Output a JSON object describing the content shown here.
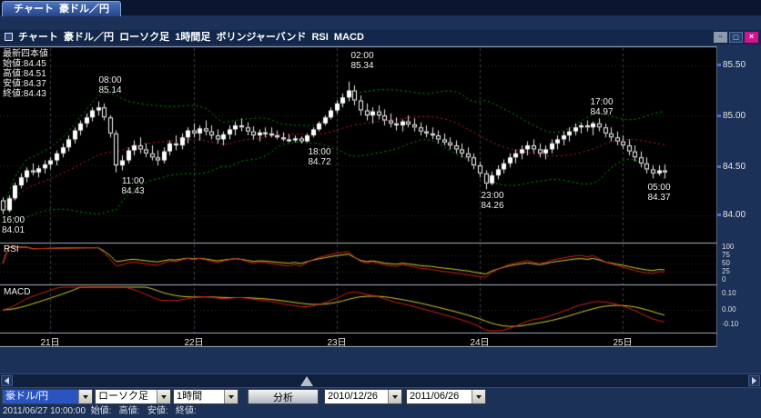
{
  "window": {
    "tab": "チャート  豪ドル／円",
    "title": "チャート  豪ドル／円  ローソク足  1時間足  ボリンジャーバンド  RSI  MACD",
    "buttons": {
      "minimize": "−",
      "maximize": "□",
      "close": "×"
    }
  },
  "legend": {
    "title": "最新四本値",
    "open": "始値:84.45",
    "high": "高値:84.51",
    "low": "安値:84.37",
    "close": "終値:84.43"
  },
  "price_axis": [
    "85.50",
    "85.00",
    "84.50",
    "84.00"
  ],
  "panels": {
    "rsi_label": "RSI",
    "macd_label": "MACD"
  },
  "rsi_axis": [
    "100",
    "75",
    "50",
    "25",
    "0"
  ],
  "macd_axis": [
    "0.10",
    "0.00",
    "-0.10"
  ],
  "date_axis": [
    "21日",
    "22日",
    "23日",
    "24日",
    "25日"
  ],
  "annotations": [
    {
      "time": "02:00",
      "price": "85.34"
    },
    {
      "time": "08:00",
      "price": "85.14"
    },
    {
      "time": "17:00",
      "price": "84.97"
    },
    {
      "time": "18:00",
      "price": "84.72"
    },
    {
      "time": "11:00",
      "price": "84.43"
    },
    {
      "time": "23:00",
      "price": "84.26"
    },
    {
      "time": "05:00",
      "price": "84.37"
    },
    {
      "time": "16:00",
      "price": "84.01"
    }
  ],
  "toolbar": {
    "pair": "豪ドル/円",
    "chart_type": "ローソク足",
    "interval": "1時間",
    "analyze": "分析",
    "date_from": "2010/12/26",
    "date_to": "2011/06/26"
  },
  "statusbar": "2011/06/27 10:00:00  始値:   高値:   安値:   終値:",
  "chart_data": {
    "type": "candlestick",
    "pair": "豪ドル/円",
    "interval": "1時間",
    "overlays": [
      "ボリンジャーバンド"
    ],
    "sub_indicators": [
      "RSI",
      "MACD"
    ],
    "price_ticks": [
      85.5,
      85.0,
      84.5,
      84.0
    ],
    "rsi_ticks": [
      100,
      75,
      50,
      25,
      0
    ],
    "macd_ticks": [
      0.1,
      0.0,
      -0.1
    ],
    "date_ticks": [
      "21日",
      "22日",
      "23日",
      "24日",
      "25日"
    ],
    "day_start_indices": [
      8,
      32,
      56,
      80,
      104
    ],
    "latest": {
      "open": 84.45,
      "high": 84.51,
      "low": 84.37,
      "close": 84.43
    },
    "extremes": [
      {
        "time": "02:00",
        "price": 85.34
      },
      {
        "time": "08:00",
        "price": 85.14
      },
      {
        "time": "17:00",
        "price": 84.97
      },
      {
        "time": "18:00",
        "price": 84.72
      },
      {
        "time": "11:00",
        "price": 84.43
      },
      {
        "time": "23:00",
        "price": 84.26
      },
      {
        "time": "05:00",
        "price": 84.37
      },
      {
        "time": "16:00",
        "price": 84.01
      }
    ],
    "colors": {
      "up_candle": "#ffffff",
      "down_candle": "#000000",
      "bollinger_band": "#00a000",
      "bollinger_mid": "#cc2222",
      "main_line": "#d61f1f",
      "signal_line": "#cfcf2e",
      "selection_blue": "#2a55c0",
      "close_button": "#d5128e"
    },
    "candles": [
      [
        84.15,
        84.18,
        84.01,
        84.05
      ],
      [
        84.05,
        84.2,
        84.03,
        84.17
      ],
      [
        84.17,
        84.33,
        84.15,
        84.3
      ],
      [
        84.3,
        84.42,
        84.27,
        84.38
      ],
      [
        84.38,
        84.48,
        84.33,
        84.45
      ],
      [
        84.45,
        84.52,
        84.4,
        84.43
      ],
      [
        84.43,
        84.5,
        84.38,
        84.47
      ],
      [
        84.47,
        84.55,
        84.42,
        84.51
      ],
      [
        84.51,
        84.58,
        84.46,
        84.55
      ],
      [
        84.55,
        84.65,
        84.5,
        84.62
      ],
      [
        84.62,
        84.72,
        84.58,
        84.68
      ],
      [
        84.68,
        84.8,
        84.64,
        84.76
      ],
      [
        84.76,
        84.88,
        84.72,
        84.85
      ],
      [
        84.85,
        84.95,
        84.8,
        84.92
      ],
      [
        84.92,
        85.02,
        84.88,
        84.98
      ],
      [
        84.98,
        85.08,
        84.94,
        85.05
      ],
      [
        85.05,
        85.14,
        85.0,
        85.08
      ],
      [
        85.08,
        85.12,
        84.95,
        84.98
      ],
      [
        84.98,
        85.0,
        84.78,
        84.82
      ],
      [
        84.82,
        84.85,
        84.43,
        84.5
      ],
      [
        84.5,
        84.6,
        84.45,
        84.55
      ],
      [
        84.55,
        84.68,
        84.52,
        84.65
      ],
      [
        84.65,
        84.75,
        84.6,
        84.7
      ],
      [
        84.7,
        84.78,
        84.62,
        84.66
      ],
      [
        84.66,
        84.72,
        84.58,
        84.62
      ],
      [
        84.62,
        84.7,
        84.55,
        84.58
      ],
      [
        84.58,
        84.65,
        84.5,
        84.55
      ],
      [
        84.55,
        84.68,
        84.52,
        84.64
      ],
      [
        84.64,
        84.75,
        84.6,
        84.72
      ],
      [
        84.72,
        84.8,
        84.65,
        84.7
      ],
      [
        84.7,
        84.82,
        84.66,
        84.78
      ],
      [
        84.78,
        84.88,
        84.72,
        84.85
      ],
      [
        84.85,
        84.92,
        84.78,
        84.82
      ],
      [
        84.82,
        84.9,
        84.75,
        84.87
      ],
      [
        84.87,
        84.95,
        84.8,
        84.84
      ],
      [
        84.84,
        84.9,
        84.76,
        84.8
      ],
      [
        84.8,
        84.86,
        84.72,
        84.76
      ],
      [
        84.76,
        84.84,
        84.7,
        84.81
      ],
      [
        84.81,
        84.9,
        84.76,
        84.86
      ],
      [
        84.86,
        84.94,
        84.8,
        84.9
      ],
      [
        84.9,
        84.97,
        84.84,
        84.88
      ],
      [
        84.88,
        84.93,
        84.8,
        84.84
      ],
      [
        84.84,
        84.89,
        84.76,
        84.8
      ],
      [
        84.8,
        84.86,
        84.74,
        84.83
      ],
      [
        84.83,
        84.88,
        84.78,
        84.82
      ],
      [
        84.82,
        84.88,
        84.78,
        84.8
      ],
      [
        84.8,
        84.85,
        84.76,
        84.78
      ],
      [
        84.78,
        84.83,
        84.74,
        84.76
      ],
      [
        84.76,
        84.81,
        84.73,
        84.75
      ],
      [
        84.75,
        84.8,
        84.73,
        84.77
      ],
      [
        84.77,
        84.79,
        84.72,
        84.74
      ],
      [
        84.74,
        84.82,
        84.73,
        84.8
      ],
      [
        84.8,
        84.88,
        84.78,
        84.86
      ],
      [
        84.86,
        84.94,
        84.84,
        84.92
      ],
      [
        84.92,
        85.0,
        84.9,
        84.98
      ],
      [
        84.98,
        85.08,
        84.96,
        85.05
      ],
      [
        85.05,
        85.15,
        85.02,
        85.12
      ],
      [
        85.12,
        85.22,
        85.08,
        85.18
      ],
      [
        85.18,
        85.34,
        85.14,
        85.25
      ],
      [
        85.25,
        85.3,
        85.1,
        85.15
      ],
      [
        85.15,
        85.2,
        85.0,
        85.05
      ],
      [
        85.05,
        85.12,
        84.95,
        85.0
      ],
      [
        85.0,
        85.08,
        84.92,
        85.04
      ],
      [
        85.04,
        85.1,
        84.96,
        85.0
      ],
      [
        85.0,
        85.06,
        84.9,
        84.95
      ],
      [
        84.95,
        85.02,
        84.88,
        84.92
      ],
      [
        84.92,
        84.98,
        84.85,
        84.9
      ],
      [
        84.9,
        84.96,
        84.84,
        84.94
      ],
      [
        84.94,
        85.0,
        84.88,
        84.91
      ],
      [
        84.91,
        84.97,
        84.84,
        84.88
      ],
      [
        84.88,
        84.93,
        84.8,
        84.84
      ],
      [
        84.84,
        84.9,
        84.78,
        84.82
      ],
      [
        84.82,
        84.88,
        84.76,
        84.8
      ],
      [
        84.8,
        84.85,
        84.72,
        84.76
      ],
      [
        84.76,
        84.82,
        84.7,
        84.73
      ],
      [
        84.73,
        84.78,
        84.66,
        84.7
      ],
      [
        84.7,
        84.75,
        84.62,
        84.66
      ],
      [
        84.66,
        84.72,
        84.58,
        84.62
      ],
      [
        84.62,
        84.68,
        84.54,
        84.58
      ],
      [
        84.58,
        84.62,
        84.46,
        84.5
      ],
      [
        84.5,
        84.54,
        84.38,
        84.42
      ],
      [
        84.42,
        84.45,
        84.26,
        84.32
      ],
      [
        84.32,
        84.44,
        84.3,
        84.4
      ],
      [
        84.4,
        84.5,
        84.36,
        84.46
      ],
      [
        84.46,
        84.56,
        84.42,
        84.52
      ],
      [
        84.52,
        84.62,
        84.48,
        84.58
      ],
      [
        84.58,
        84.66,
        84.52,
        84.62
      ],
      [
        84.62,
        84.7,
        84.56,
        84.66
      ],
      [
        84.66,
        84.74,
        84.6,
        84.7
      ],
      [
        84.7,
        84.76,
        84.62,
        84.66
      ],
      [
        84.66,
        84.72,
        84.58,
        84.62
      ],
      [
        84.62,
        84.7,
        84.56,
        84.66
      ],
      [
        84.66,
        84.76,
        84.62,
        84.72
      ],
      [
        84.72,
        84.8,
        84.66,
        84.76
      ],
      [
        84.76,
        84.84,
        84.7,
        84.8
      ],
      [
        84.8,
        84.88,
        84.74,
        84.84
      ],
      [
        84.84,
        84.92,
        84.8,
        84.88
      ],
      [
        84.88,
        84.93,
        84.82,
        84.9
      ],
      [
        84.9,
        84.95,
        84.84,
        84.88
      ],
      [
        84.88,
        84.94,
        84.8,
        84.92
      ],
      [
        84.92,
        84.97,
        84.84,
        84.88
      ],
      [
        84.88,
        84.92,
        84.78,
        84.82
      ],
      [
        84.82,
        84.88,
        84.74,
        84.78
      ],
      [
        84.78,
        84.84,
        84.7,
        84.74
      ],
      [
        84.74,
        84.8,
        84.66,
        84.7
      ],
      [
        84.7,
        84.76,
        84.6,
        84.64
      ],
      [
        84.64,
        84.7,
        84.54,
        84.58
      ],
      [
        84.58,
        84.64,
        84.48,
        84.52
      ],
      [
        84.52,
        84.58,
        84.42,
        84.46
      ],
      [
        84.46,
        84.5,
        84.37,
        84.42
      ],
      [
        84.42,
        84.5,
        84.4,
        84.45
      ],
      [
        84.45,
        84.51,
        84.37,
        84.43
      ]
    ]
  }
}
